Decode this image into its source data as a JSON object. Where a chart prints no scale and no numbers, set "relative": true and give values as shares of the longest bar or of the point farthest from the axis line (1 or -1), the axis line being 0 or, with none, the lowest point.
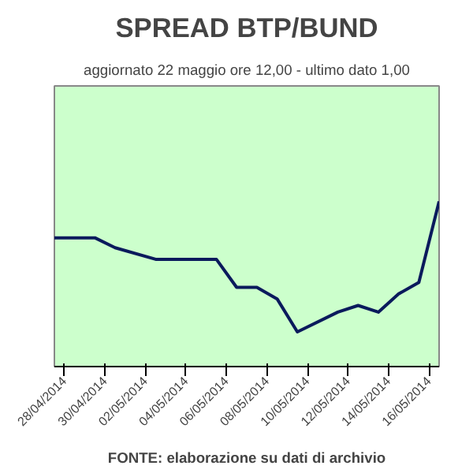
{
  "chart_data": {
    "type": "line",
    "title": "SPREAD BTP/BUND",
    "subtitle": "aggiornato 22 maggio ore 12,00 - ultimo dato 1,00",
    "relative": true,
    "grid": false,
    "marker": "none",
    "line_style": "solid",
    "x": [
      "2014-04-27T12:00",
      "2014-04-29T12:00",
      "2014-04-30T12:00",
      "2014-05-02T12:00",
      "2014-05-05T12:00",
      "2014-05-06T12:00",
      "2014-05-07T12:00",
      "2014-05-08T12:00",
      "2014-05-09T12:00",
      "2014-05-11T12:00",
      "2014-05-12T12:00",
      "2014-05-13T12:00",
      "2014-05-14T12:00",
      "2014-05-15T12:00",
      "2014-05-16T12:00"
    ],
    "series": [
      {
        "color": "#0a1a5c",
        "values": [
          0.78,
          0.78,
          0.72,
          0.65,
          0.65,
          0.48,
          0.48,
          0.41,
          0.21,
          0.33,
          0.37,
          0.33,
          0.44,
          0.51,
          1.0
        ]
      }
    ],
    "xlim": [
      "2014-04-27T12:00",
      "2014-05-16T12:00"
    ],
    "xticks": [
      {
        "value": "2014-04-28",
        "label": "28/04/2014"
      },
      {
        "value": "2014-04-30",
        "label": "30/04/2014"
      },
      {
        "value": "2014-05-02",
        "label": "02/05/2014"
      },
      {
        "value": "2014-05-04",
        "label": "04/05/2014"
      },
      {
        "value": "2014-05-06",
        "label": "06/05/2014"
      },
      {
        "value": "2014-05-08",
        "label": "08/05/2014"
      },
      {
        "value": "2014-05-10",
        "label": "10/05/2014"
      },
      {
        "value": "2014-05-12",
        "label": "12/05/2014"
      },
      {
        "value": "2014-05-14",
        "label": "14/05/2014"
      },
      {
        "value": "2014-05-16",
        "label": "16/05/2014"
      }
    ],
    "annotations": [
      "FONTE: elaborazione su dati di archivio"
    ]
  }
}
